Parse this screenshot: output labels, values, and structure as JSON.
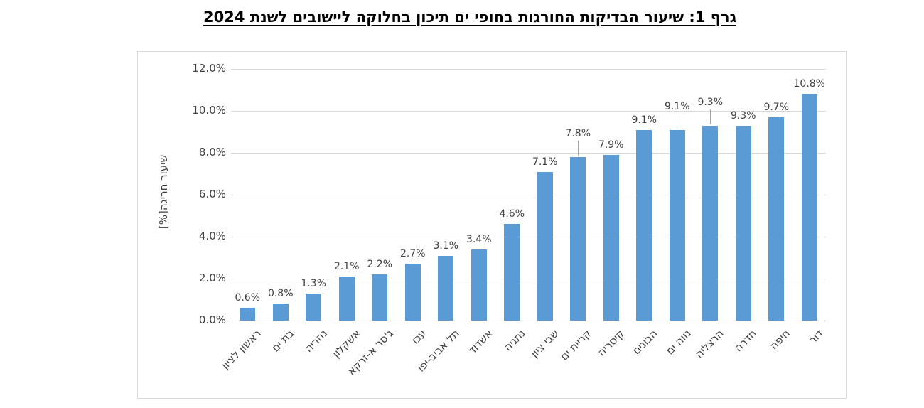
{
  "chart_data": {
    "type": "bar",
    "title": "גרף 1: שיעור הבדיקות החורגות בחופי ים תיכון בחלוקה ליישובים לשנת 2024",
    "ylabel": "שיעור חריגה[%]",
    "xlabel": "",
    "categories": [
      "ראשון לציון",
      "בת ים",
      "נהריה",
      "אשקלון",
      "ג'סר א-זרקא",
      "עכו",
      "תל אביב-יפו",
      "אשדוד",
      "נתניה",
      "שבי ציון",
      "קריית ים",
      "קיסריה",
      "הבונים",
      "נווה ים",
      "הרצליה",
      "חדרה",
      "חיפה",
      "דור"
    ],
    "values": [
      0.6,
      0.8,
      1.3,
      2.1,
      2.2,
      2.7,
      3.1,
      3.4,
      4.6,
      7.1,
      7.8,
      7.9,
      9.1,
      9.1,
      9.3,
      9.3,
      9.7,
      10.8
    ],
    "data_labels": [
      "0.6%",
      "0.8%",
      "1.3%",
      "2.1%",
      "2.2%",
      "2.7%",
      "3.1%",
      "3.4%",
      "4.6%",
      "7.1%",
      "7.8%",
      "7.9%",
      "9.1%",
      "9.1%",
      "9.3%",
      "9.3%",
      "9.7%",
      "10.8%"
    ],
    "ytick_values": [
      0,
      2,
      4,
      6,
      8,
      10,
      12
    ],
    "ytick_labels": [
      "0.0%",
      "2.0%",
      "4.0%",
      "6.0%",
      "8.0%",
      "10.0%",
      "12.0%"
    ],
    "ylim": [
      0,
      12
    ],
    "grid": true,
    "legend": "none",
    "leader_label_indices": [
      10,
      13,
      14
    ],
    "colors": {
      "bar": "#5B9BD5",
      "gridline": "#D9D9D9",
      "axis_line": "#BFBFBF",
      "leader_line": "#A6A6A6",
      "text": "#404040",
      "title": "#000000",
      "chart_border": "#D9D9D9"
    }
  }
}
